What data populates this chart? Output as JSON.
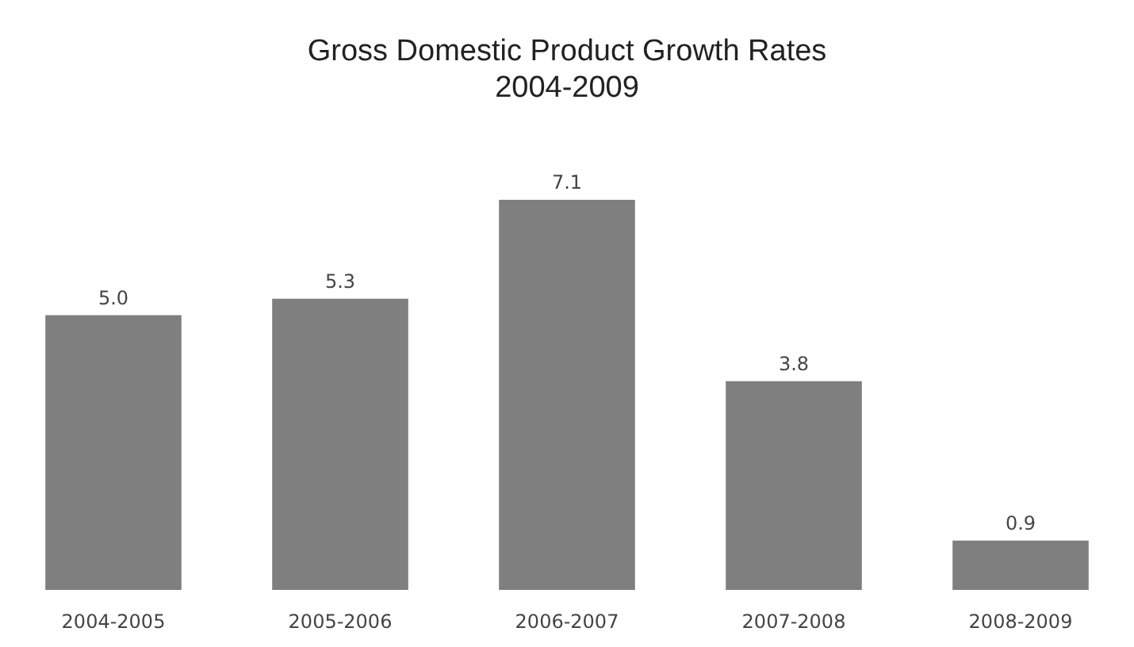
{
  "chart_data": {
    "type": "bar",
    "title": "Gross Domestic Product Growth Rates",
    "subtitle": "2004-2009",
    "categories": [
      "2004-2005",
      "2005-2006",
      "2006-2007",
      "2007-2008",
      "2008-2009"
    ],
    "values": [
      5.0,
      5.3,
      7.1,
      3.8,
      0.9
    ],
    "value_labels": [
      "5.0",
      "5.3",
      "7.1",
      "3.8",
      "0.9"
    ],
    "color": "#7f7f7f"
  }
}
